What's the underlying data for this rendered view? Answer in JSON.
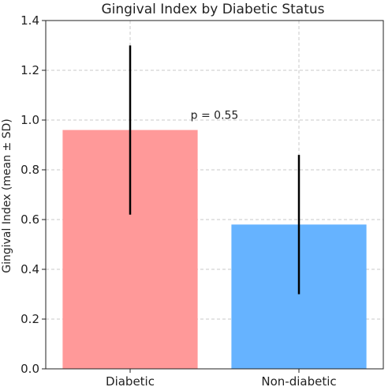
{
  "chart_data": {
    "type": "bar",
    "title": "Gingival Index by Diabetic Status",
    "xlabel": "",
    "ylabel": "Gingival Index (mean ± SD)",
    "categories": [
      "Diabetic",
      "Non-diabetic"
    ],
    "values": [
      0.96,
      0.58
    ],
    "errors": [
      0.34,
      0.28
    ],
    "colors": [
      "#ff9999",
      "#66b3ff"
    ],
    "ylim": [
      0,
      1.4
    ],
    "yticks": [
      "0.0",
      "0.2",
      "0.4",
      "0.6",
      "0.8",
      "1.0",
      "1.2",
      "1.4"
    ],
    "grid": true,
    "annotation": {
      "text": "p = 0.55",
      "x": 0.5,
      "y": 1.02
    }
  }
}
